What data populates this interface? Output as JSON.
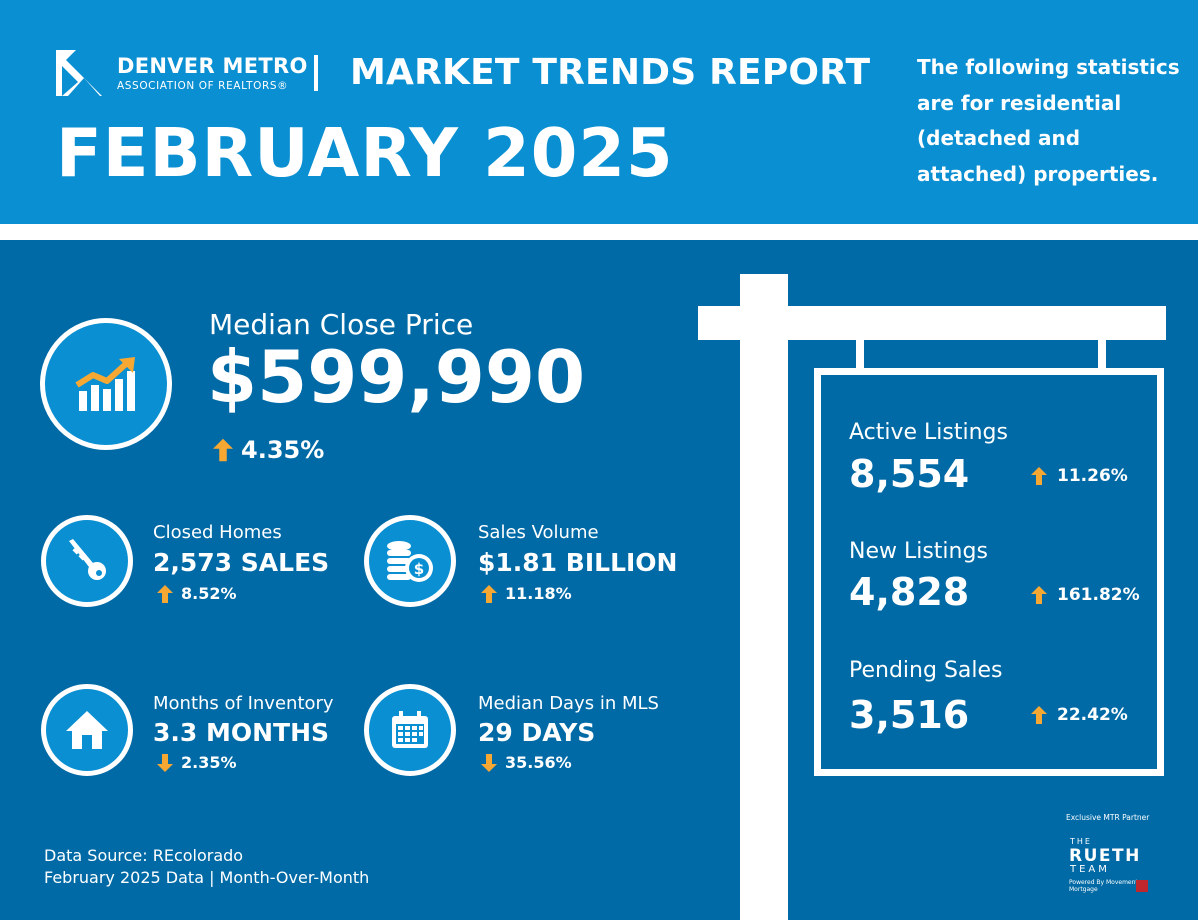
{
  "header": {
    "org_name": "DENVER METRO",
    "org_subtitle": "ASSOCIATION OF REALTORS®",
    "report_title": "MARKET TRENDS REPORT",
    "report_date": "FEBRUARY 2025",
    "note": "The following statistics are for residential (detached and attached) properties."
  },
  "median_close_price": {
    "label": "Median Close Price",
    "value": "$599,990",
    "change": "4.35%",
    "direction": "up",
    "icon": "chart-up-icon"
  },
  "stats": [
    {
      "label": "Closed Homes",
      "value": "2,573 SALES",
      "change": "8.52%",
      "direction": "up",
      "icon": "key-icon"
    },
    {
      "label": "Sales Volume",
      "value": "$1.81 BILLION",
      "change": "11.18%",
      "direction": "up",
      "icon": "coins-icon"
    },
    {
      "label": "Months of Inventory",
      "value": "3.3 MONTHS",
      "change": "2.35%",
      "direction": "down",
      "icon": "house-icon"
    },
    {
      "label": "Median Days in MLS",
      "value": "29 DAYS",
      "change": "35.56%",
      "direction": "down",
      "icon": "calendar-icon"
    }
  ],
  "sign": [
    {
      "label": "Active Listings",
      "value": "8,554",
      "change": "11.26%",
      "direction": "up"
    },
    {
      "label": "New Listings",
      "value": "4,828",
      "change": "161.82%",
      "direction": "up"
    },
    {
      "label": "Pending Sales",
      "value": "3,516",
      "change": "22.42%",
      "direction": "up"
    }
  ],
  "footer": {
    "source": "Data Source: REcolorado",
    "period": "February 2025 Data | Month-Over-Month"
  },
  "partner": {
    "label": "Exclusive MTR Partner",
    "the": "THE",
    "name": "RUETH",
    "team": "TEAM",
    "powered_by": "Powered By Movement Mortgage"
  },
  "colors": {
    "header_bg": "#0a8fd2",
    "main_bg": "#006aa6",
    "accent_arrow": "#f7a833",
    "white": "#ffffff"
  }
}
